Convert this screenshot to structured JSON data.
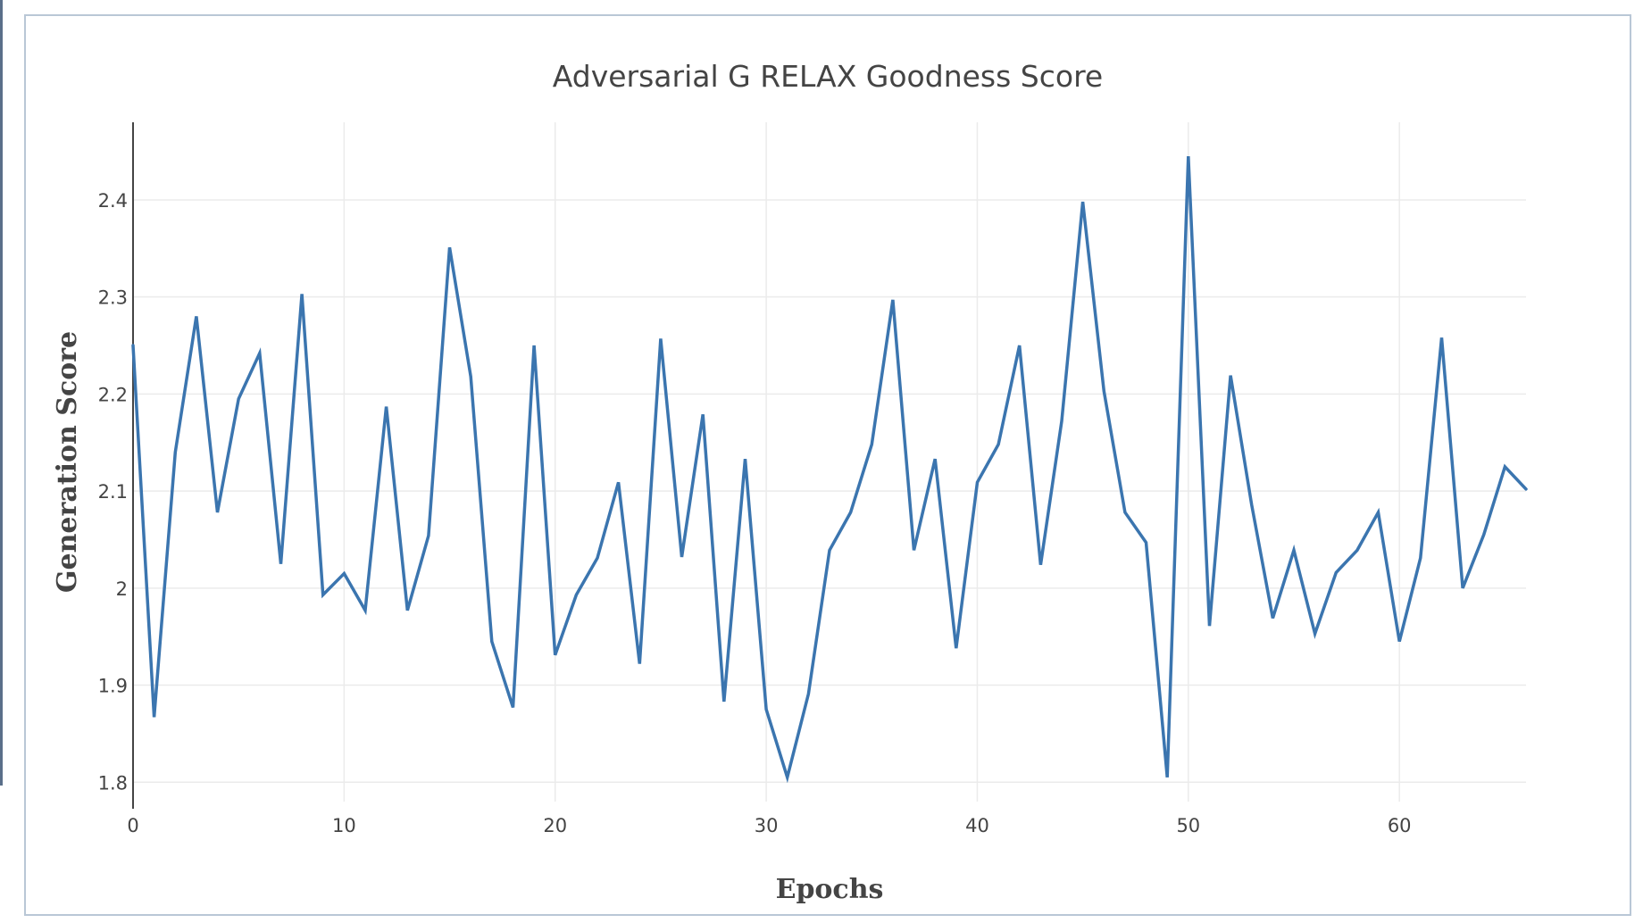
{
  "chart_data": {
    "type": "line",
    "title": "Adversarial G RELAX Goodness Score",
    "xlabel": "Epochs",
    "ylabel": "Generation Score",
    "xlim": [
      0,
      66
    ],
    "ylim": [
      1.78,
      2.48
    ],
    "x_ticks": [
      0,
      10,
      20,
      30,
      40,
      50,
      60
    ],
    "x_tick_labels": [
      "0",
      "10",
      "20",
      "30",
      "40",
      "50",
      "60"
    ],
    "y_ticks": [
      1.8,
      1.9,
      2.0,
      2.1,
      2.2,
      2.3,
      2.4
    ],
    "y_tick_labels": [
      "1.8",
      "1.9",
      "2",
      "2.1",
      "2.2",
      "2.3",
      "2.4"
    ],
    "grid": true,
    "line_color": "#3b75af",
    "series": [
      {
        "x": [
          0,
          1,
          2,
          3,
          4,
          5,
          6,
          7,
          8,
          9,
          10,
          11,
          12,
          13,
          14,
          15,
          16,
          17,
          18,
          19,
          20,
          21,
          22,
          23,
          24,
          25,
          26,
          27,
          28,
          29,
          30,
          31,
          32,
          33,
          34,
          35,
          36,
          37,
          38,
          39,
          40,
          41,
          42,
          43,
          44,
          45,
          46,
          47,
          48,
          49,
          50,
          51,
          52,
          53,
          54,
          55,
          56,
          57,
          58,
          59,
          60,
          61,
          62,
          63,
          64,
          65,
          66
        ],
        "values": [
          2.25,
          1.867,
          2.14,
          2.28,
          2.078,
          2.195,
          2.242,
          2.025,
          2.303,
          1.993,
          2.015,
          1.977,
          2.187,
          1.977,
          2.054,
          2.351,
          2.218,
          1.945,
          1.877,
          2.25,
          1.931,
          1.993,
          2.031,
          2.109,
          1.922,
          2.257,
          2.032,
          2.179,
          1.883,
          2.133,
          1.875,
          1.805,
          1.891,
          2.039,
          2.078,
          2.148,
          2.297,
          2.039,
          2.133,
          1.938,
          2.109,
          2.148,
          2.25,
          2.024,
          2.172,
          2.398,
          2.203,
          2.078,
          2.047,
          1.805,
          2.445,
          1.961,
          2.219,
          2.086,
          1.969,
          2.039,
          1.953,
          2.016,
          2.039,
          2.078,
          1.945,
          2.031,
          2.258,
          2.0,
          2.055,
          2.125,
          2.102
        ]
      }
    ]
  }
}
